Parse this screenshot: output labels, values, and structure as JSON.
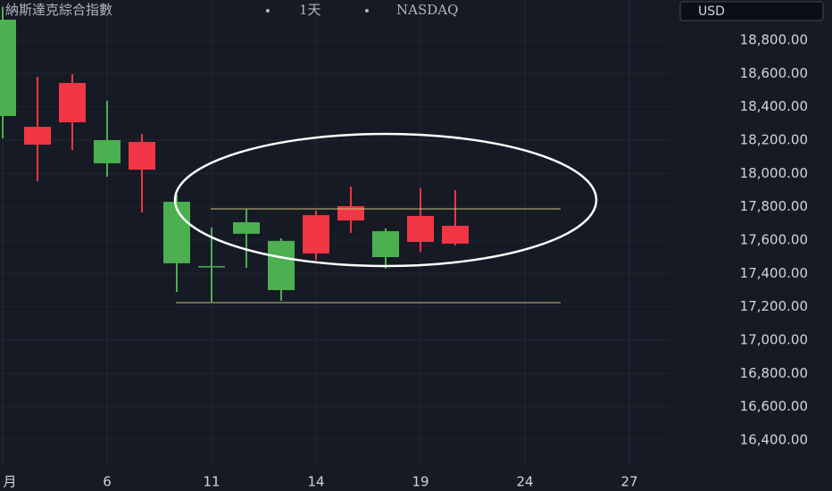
{
  "chart_data": {
    "type": "candlestick",
    "title_parts": [
      "納斯達克綜合指數",
      "1天",
      "NASDAQ"
    ],
    "currency": "USD",
    "categories": [
      "月",
      null,
      null,
      "6",
      null,
      null,
      "11",
      null,
      null,
      "14",
      null,
      null,
      "19",
      null,
      null,
      "24",
      null,
      null,
      "27"
    ],
    "up_color": "#f23645",
    "down_color": "#4caf50",
    "open": [
      18923,
      18173,
      18307,
      18200,
      18023,
      17830,
      17444,
      17707,
      17595,
      17520,
      17718,
      17654,
      17589,
      17579,
      null,
      null,
      null,
      null,
      null
    ],
    "high": [
      19000,
      18580,
      18596,
      18436,
      18237,
      17873,
      17675,
      17787,
      17611,
      17777,
      17921,
      17670,
      17911,
      17900,
      null,
      null,
      null,
      null,
      null
    ],
    "low": [
      18211,
      17954,
      18141,
      17980,
      17766,
      17289,
      17230,
      17434,
      17236,
      17482,
      17643,
      17429,
      17530,
      17568,
      null,
      null,
      null,
      null,
      null
    ],
    "close": [
      18345,
      18280,
      18543,
      18061,
      18189,
      17461,
      17438,
      17638,
      17300,
      17750,
      17804,
      17498,
      17745,
      17686,
      null,
      null,
      null,
      null,
      null
    ],
    "ylim": [
      16255,
      19041
    ],
    "yticks": [
      {
        "value": 16400,
        "label": "16,400.00"
      },
      {
        "value": 16600,
        "label": "16,600.00"
      },
      {
        "value": 16800,
        "label": "16,800.00"
      },
      {
        "value": 17000,
        "label": "17,000.00"
      },
      {
        "value": 17200,
        "label": "17,200.00"
      },
      {
        "value": 17400,
        "label": "17,400.00"
      },
      {
        "value": 17600,
        "label": "17,600.00"
      },
      {
        "value": 17800,
        "label": "17,800.00"
      },
      {
        "value": 18000,
        "label": "18,000.00"
      },
      {
        "value": 18200,
        "label": "18,200.00"
      },
      {
        "value": 18400,
        "label": "18,400.00"
      },
      {
        "value": 18600,
        "label": "18,600.00"
      },
      {
        "value": 18800,
        "label": "18,800.00"
      }
    ],
    "grid": true
  }
}
